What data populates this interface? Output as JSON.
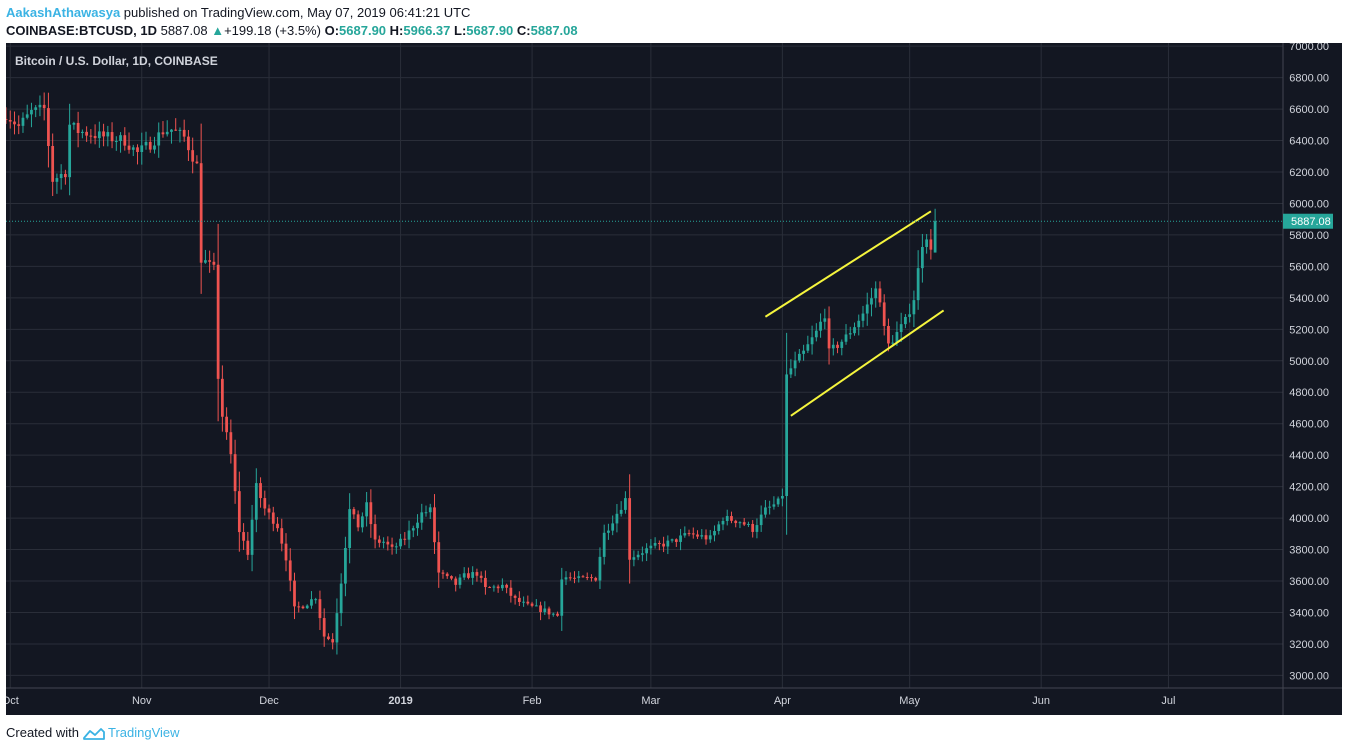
{
  "header": {
    "author": "AakashAthawasya",
    "published": "published on TradingView.com, May 07, 2019 06:41:21 UTC",
    "symbol": "COINBASE:BTCUSD, 1D",
    "last": "5887.08",
    "change": "+199.18 (+3.5%)",
    "o_label": "O:",
    "o": "5687.90",
    "h_label": "H:",
    "h": "5966.37",
    "l_label": "L:",
    "l": "5687.90",
    "c_label": "C:",
    "c": "5887.08"
  },
  "footer": {
    "created": "Created with",
    "brand": "TradingView"
  },
  "colors": {
    "background": "#131722",
    "grid": "#2a2e39",
    "up": "#26a69a",
    "down": "#ef5350",
    "trendline": "#f5f53d",
    "axis_text": "#d1d4dc"
  },
  "chart_data": {
    "type": "candlestick",
    "title": "Bitcoin / U.S. Dollar, 1D, COINBASE",
    "last_price_label": "5887.08",
    "last_price": 5887.08,
    "ylim": [
      2920,
      7020
    ],
    "xlim": [
      "2018-09-30",
      "2019-07-28"
    ],
    "y_ticks": [
      "3000.00",
      "3200.00",
      "3400.00",
      "3600.00",
      "3800.00",
      "4000.00",
      "4200.00",
      "4400.00",
      "4600.00",
      "4800.00",
      "5000.00",
      "5200.00",
      "5400.00",
      "5600.00",
      "5800.00",
      "6000.00",
      "6200.00",
      "6400.00",
      "6600.00",
      "6800.00",
      "7000.00"
    ],
    "x_ticks": [
      {
        "date": "2018-10-01",
        "label": "Oct"
      },
      {
        "date": "2018-11-01",
        "label": "Nov"
      },
      {
        "date": "2018-12-01",
        "label": "Dec"
      },
      {
        "date": "2019-01-01",
        "label": "2019"
      },
      {
        "date": "2019-02-01",
        "label": "Feb"
      },
      {
        "date": "2019-03-01",
        "label": "Mar"
      },
      {
        "date": "2019-04-01",
        "label": "Apr"
      },
      {
        "date": "2019-05-01",
        "label": "May"
      },
      {
        "date": "2019-06-01",
        "label": "Jun"
      },
      {
        "date": "2019-07-01",
        "label": "Jul"
      }
    ],
    "anchors": [
      [
        "2018-09-30",
        6570
      ],
      [
        "2018-10-03",
        6490
      ],
      [
        "2018-10-06",
        6580
      ],
      [
        "2018-10-09",
        6600
      ],
      [
        "2018-10-11",
        6150
      ],
      [
        "2018-10-14",
        6200
      ],
      [
        "2018-10-15",
        6500
      ],
      [
        "2018-10-17",
        6460
      ],
      [
        "2018-10-22",
        6430
      ],
      [
        "2018-10-28",
        6400
      ],
      [
        "2018-10-31",
        6320
      ],
      [
        "2018-11-03",
        6380
      ],
      [
        "2018-11-06",
        6460
      ],
      [
        "2018-11-08",
        6470
      ],
      [
        "2018-11-11",
        6420
      ],
      [
        "2018-11-14",
        6240
      ],
      [
        "2018-11-15",
        5650
      ],
      [
        "2018-11-18",
        5580
      ],
      [
        "2018-11-19",
        4900
      ],
      [
        "2018-11-20",
        4650
      ],
      [
        "2018-11-22",
        4400
      ],
      [
        "2018-11-24",
        3920
      ],
      [
        "2018-11-26",
        3780
      ],
      [
        "2018-11-28",
        4200
      ],
      [
        "2018-11-30",
        4060
      ],
      [
        "2018-12-03",
        3950
      ],
      [
        "2018-12-05",
        3750
      ],
      [
        "2018-12-07",
        3420
      ],
      [
        "2018-12-10",
        3460
      ],
      [
        "2018-12-12",
        3500
      ],
      [
        "2018-12-14",
        3250
      ],
      [
        "2018-12-16",
        3220
      ],
      [
        "2018-12-18",
        3600
      ],
      [
        "2018-12-20",
        4050
      ],
      [
        "2018-12-22",
        3950
      ],
      [
        "2018-12-24",
        4080
      ],
      [
        "2018-12-26",
        3850
      ],
      [
        "2018-12-28",
        3850
      ],
      [
        "2018-12-30",
        3800
      ],
      [
        "2019-01-02",
        3870
      ],
      [
        "2019-01-06",
        4030
      ],
      [
        "2019-01-08",
        4050
      ],
      [
        "2019-01-10",
        3650
      ],
      [
        "2019-01-14",
        3580
      ],
      [
        "2019-01-16",
        3630
      ],
      [
        "2019-01-19",
        3650
      ],
      [
        "2019-01-21",
        3550
      ],
      [
        "2019-01-25",
        3570
      ],
      [
        "2019-01-28",
        3480
      ],
      [
        "2019-01-31",
        3440
      ],
      [
        "2019-02-03",
        3420
      ],
      [
        "2019-02-07",
        3380
      ],
      [
        "2019-02-08",
        3630
      ],
      [
        "2019-02-12",
        3610
      ],
      [
        "2019-02-16",
        3620
      ],
      [
        "2019-02-18",
        3900
      ],
      [
        "2019-02-23",
        4120
      ],
      [
        "2019-02-24",
        3750
      ],
      [
        "2019-02-28",
        3800
      ],
      [
        "2019-03-02",
        3820
      ],
      [
        "2019-03-06",
        3850
      ],
      [
        "2019-03-10",
        3900
      ],
      [
        "2019-03-15",
        3870
      ],
      [
        "2019-03-18",
        4000
      ],
      [
        "2019-03-22",
        3980
      ],
      [
        "2019-03-25",
        3930
      ],
      [
        "2019-03-28",
        4050
      ],
      [
        "2019-03-31",
        4100
      ],
      [
        "2019-04-01",
        4150
      ],
      [
        "2019-04-02",
        4900
      ],
      [
        "2019-04-03",
        4950
      ],
      [
        "2019-04-06",
        5050
      ],
      [
        "2019-04-09",
        5180
      ],
      [
        "2019-04-11",
        5300
      ],
      [
        "2019-04-12",
        5050
      ],
      [
        "2019-04-16",
        5150
      ],
      [
        "2019-04-20",
        5300
      ],
      [
        "2019-04-23",
        5450
      ],
      [
        "2019-04-24",
        5400
      ],
      [
        "2019-04-25",
        5200
      ],
      [
        "2019-04-26",
        5100
      ],
      [
        "2019-04-30",
        5250
      ],
      [
        "2019-05-02",
        5400
      ],
      [
        "2019-05-04",
        5750
      ],
      [
        "2019-05-05",
        5800
      ],
      [
        "2019-05-06",
        5688
      ],
      [
        "2019-05-07",
        5887.08
      ]
    ],
    "trendlines": [
      {
        "name": "upper channel",
        "from": [
          "2019-03-28",
          5280
        ],
        "to": [
          "2019-05-06",
          5950
        ]
      },
      {
        "name": "lower channel",
        "from": [
          "2019-04-03",
          4650
        ],
        "to": [
          "2019-05-09",
          5320
        ]
      }
    ]
  }
}
